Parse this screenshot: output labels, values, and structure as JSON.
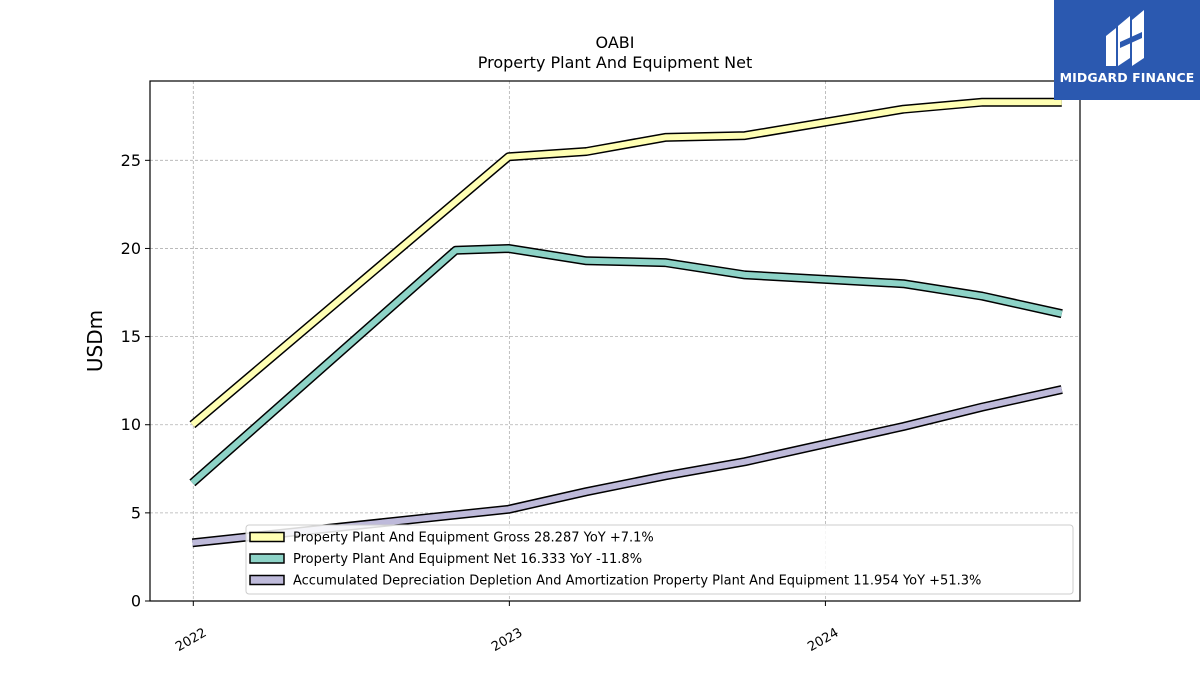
{
  "brand": {
    "name": "MIDGARD FINANCE",
    "bg_color": "#2b59b0"
  },
  "chart_data": {
    "type": "line",
    "title": "OABI",
    "subtitle": "Property Plant And Equipment Net",
    "ylabel": "USDm",
    "xlabel": "",
    "xlim": [
      "2021-11-12",
      "2024-10-21"
    ],
    "ylim": [
      0,
      29.5
    ],
    "yticks": [
      0,
      5,
      10,
      15,
      20,
      25
    ],
    "xticks": [
      {
        "date": "2022-01-01",
        "label": "2022"
      },
      {
        "date": "2023-01-01",
        "label": "2023"
      },
      {
        "date": "2024-01-01",
        "label": "2024"
      }
    ],
    "grid": true,
    "legend_position": "lower-right",
    "series": [
      {
        "name": "Property Plant And Equipment Gross",
        "legend_label": "Property Plant And Equipment Gross  28.287 YoY +7.1%",
        "color": "#ffffb3",
        "points": [
          [
            "2021-12-31",
            10.0
          ],
          [
            "2022-12-31",
            25.2
          ],
          [
            "2023-03-31",
            25.5
          ],
          [
            "2023-06-30",
            26.3
          ],
          [
            "2023-09-30",
            26.4
          ],
          [
            "2024-03-31",
            27.9
          ],
          [
            "2024-06-30",
            28.3
          ],
          [
            "2024-09-30",
            28.3
          ]
        ]
      },
      {
        "name": "Property Plant And Equipment Net",
        "legend_label": "Property Plant And Equipment Net  16.333 YoY -11.8%",
        "color": "#8dd3c7",
        "points": [
          [
            "2021-12-31",
            6.7
          ],
          [
            "2022-10-31",
            19.9
          ],
          [
            "2022-12-31",
            20.0
          ],
          [
            "2023-03-31",
            19.3
          ],
          [
            "2023-06-30",
            19.2
          ],
          [
            "2023-09-30",
            18.5
          ],
          [
            "2024-03-31",
            18.0
          ],
          [
            "2024-06-30",
            17.3
          ],
          [
            "2024-09-30",
            16.3
          ]
        ]
      },
      {
        "name": "Accumulated Depreciation Depletion And Amortization Property Plant And Equipment",
        "legend_label": "Accumulated Depreciation Depletion And Amortization Property Plant And Equipment  11.954 YoY +51.3%",
        "color": "#bebada",
        "points": [
          [
            "2021-12-31",
            3.3
          ],
          [
            "2022-12-31",
            5.2
          ],
          [
            "2023-03-31",
            6.2
          ],
          [
            "2023-06-30",
            7.1
          ],
          [
            "2023-09-30",
            7.9
          ],
          [
            "2024-03-31",
            9.9
          ],
          [
            "2024-06-30",
            11.0
          ],
          [
            "2024-09-30",
            12.0
          ]
        ]
      }
    ]
  }
}
